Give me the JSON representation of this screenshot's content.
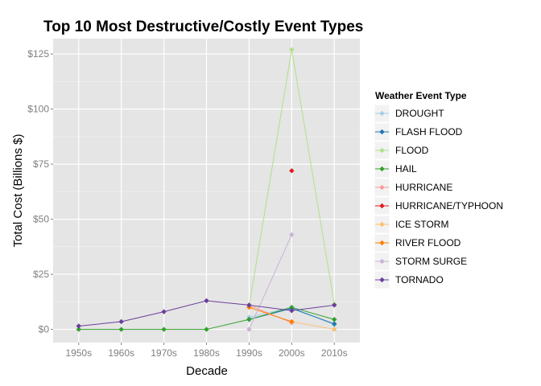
{
  "chart_data": {
    "type": "line",
    "title": "Top 10 Most Destructive/Costly Event Types",
    "xlabel": "Decade",
    "ylabel": "Total Cost (Billions $)",
    "categories": [
      "1950s",
      "1960s",
      "1970s",
      "1980s",
      "1990s",
      "2000s",
      "2010s"
    ],
    "ylim": [
      -6,
      132
    ],
    "yticks": [
      0,
      25,
      50,
      75,
      100,
      125
    ],
    "ytick_labels": [
      "$0",
      "$25",
      "$50",
      "$75",
      "$100",
      "$125"
    ],
    "grid": true,
    "legend": {
      "title": "Weather Event Type",
      "position": "right"
    },
    "series": [
      {
        "name": "DROUGHT",
        "color": "#a6cee3",
        "values": [
          null,
          null,
          null,
          null,
          5.5,
          10,
          2
        ]
      },
      {
        "name": "FLASH FLOOD",
        "color": "#1f78b4",
        "values": [
          null,
          null,
          null,
          null,
          4.5,
          9.5,
          2.5
        ]
      },
      {
        "name": "FLOOD",
        "color": "#b2df8a",
        "values": [
          null,
          null,
          null,
          null,
          10.5,
          127,
          11.5
        ]
      },
      {
        "name": "HAIL",
        "color": "#33a02c",
        "values": [
          0,
          0,
          0,
          0,
          4.5,
          10,
          4.5
        ]
      },
      {
        "name": "HURRICANE",
        "color": "#fb9a99",
        "values": [
          null,
          null,
          null,
          null,
          11,
          3,
          null
        ]
      },
      {
        "name": "HURRICANE/TYPHOON",
        "color": "#e31a1c",
        "values": [
          null,
          null,
          null,
          null,
          null,
          72,
          null
        ]
      },
      {
        "name": "ICE STORM",
        "color": "#fdbf6f",
        "values": [
          null,
          null,
          null,
          null,
          10,
          3.5,
          0
        ]
      },
      {
        "name": "RIVER FLOOD",
        "color": "#ff7f00",
        "values": [
          null,
          null,
          null,
          null,
          10,
          3.5,
          null
        ]
      },
      {
        "name": "STORM SURGE",
        "color": "#cab2d6",
        "values": [
          null,
          null,
          null,
          null,
          0,
          43,
          null
        ]
      },
      {
        "name": "TORNADO",
        "color": "#6a3d9a",
        "values": [
          1.5,
          3.5,
          8,
          13,
          11,
          8.5,
          11
        ]
      }
    ]
  }
}
